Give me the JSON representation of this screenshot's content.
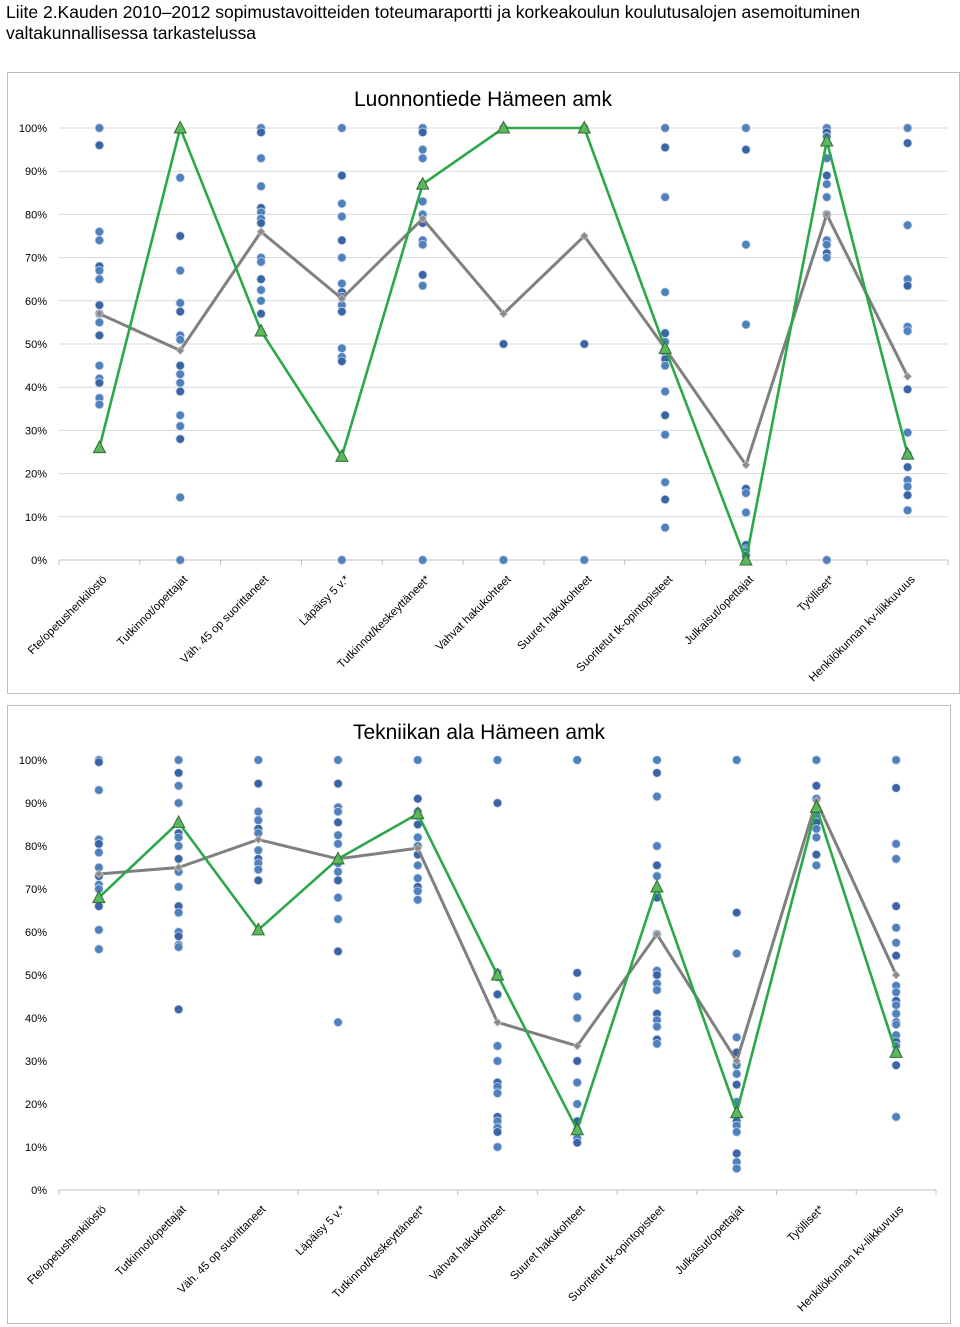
{
  "page": {
    "title_line1": "Liite 2.Kauden 2010–2012 sopimustavoitteiden toteumaraportti ja korkeakoulun koulutusalojen asemoituminen",
    "title_line2": "valtakunnallisessa tarkastelussa"
  },
  "chart_data": [
    {
      "type": "line",
      "title": "Luonnontiede Hämeen amk",
      "xlabel": "",
      "ylabel": "",
      "ylim": [
        0,
        100
      ],
      "yticks": [
        "0%",
        "10%",
        "20%",
        "30%",
        "40%",
        "50%",
        "60%",
        "70%",
        "80%",
        "90%",
        "100%"
      ],
      "categories": [
        "Fte/opetushenkilöstö",
        "Tutkinnot/opettajat",
        "Väh. 45 op suorittaneet",
        "Läpäisy 5 v.*",
        "Tutkinnot/keskeyttäneet*",
        "Vahvat hakukohteet",
        "Suuret hakukohteet",
        "Suoritetut tk-opintopisteet",
        "Julkaisut/opettajat",
        "Työlliset*",
        "Henkilökunnan kv-liikkuvuus"
      ],
      "grid": true,
      "colors": {
        "green": "#2ba84a",
        "gray": "#808080",
        "dot": "#4f81bd",
        "dot_dark": "#3b64a4",
        "grid": "#d9d9d9"
      },
      "series": [
        {
          "values": [
            26,
            100,
            53,
            24,
            87,
            100,
            100,
            49,
            0,
            97,
            24.5
          ]
        },
        {
          "values": [
            57,
            48.5,
            76,
            60.5,
            79,
            57,
            75,
            49,
            22,
            80,
            42.5
          ]
        }
      ],
      "scatter": [
        [
          100,
          96,
          76,
          74,
          68,
          67,
          65,
          59,
          57,
          55,
          52,
          45,
          42,
          41,
          37.5,
          36
        ],
        [
          88.5,
          75,
          67,
          59.5,
          57.5,
          52,
          51,
          45,
          43,
          41,
          39,
          33.5,
          31,
          28,
          14.5,
          0
        ],
        [
          100,
          99,
          93,
          86.5,
          81.5,
          80.5,
          79,
          78,
          70,
          69,
          65,
          62.5,
          60,
          57
        ],
        [
          100,
          89,
          82.5,
          79.5,
          74,
          70,
          64,
          62,
          61,
          59,
          57.5,
          49,
          47,
          46,
          0
        ],
        [
          100,
          99,
          95,
          93,
          87,
          83,
          80,
          78,
          74,
          73,
          66,
          63.5,
          0
        ],
        [
          100,
          50,
          0
        ],
        [
          100,
          50,
          0
        ],
        [
          100,
          95.5,
          84,
          62,
          52.5,
          50.5,
          48,
          46.5,
          45,
          39,
          33.5,
          29,
          18,
          14,
          7.5
        ],
        [
          100,
          95,
          73,
          54.5,
          16.5,
          15.5,
          11,
          3.5,
          2.5,
          2,
          1
        ],
        [
          100,
          99,
          98,
          93,
          89,
          87,
          84,
          80,
          74,
          73,
          71,
          70,
          0
        ],
        [
          100,
          96.5,
          77.5,
          65,
          63.5,
          54,
          53,
          39.5,
          29.5,
          24.5,
          21.5,
          18.5,
          17,
          15,
          11.5
        ]
      ]
    },
    {
      "type": "line",
      "title": "Tekniikan ala Hämeen amk",
      "xlabel": "",
      "ylabel": "",
      "ylim": [
        0,
        100
      ],
      "yticks": [
        "0%",
        "10%",
        "20%",
        "30%",
        "40%",
        "50%",
        "60%",
        "70%",
        "80%",
        "90%",
        "100%"
      ],
      "categories": [
        "Fte/opetushenkilöstö",
        "Tutkinnot/opettajat",
        "Väh. 45 op suorittaneet",
        "Läpäisy 5 v.*",
        "Tutkinnot/keskeyttäneet*",
        "Vahvat hakukohteet",
        "Suuret hakukohteet",
        "Suoritetut tk-opintopisteet",
        "Julkaisut/opettajat",
        "Työlliset*",
        "Henkilökunnan kv-liikkuvuus"
      ],
      "grid": false,
      "colors": {
        "green": "#2ba84a",
        "gray": "#808080",
        "dot": "#4f81bd",
        "dot_dark": "#3b64a4",
        "grid": "#d9d9d9"
      },
      "series": [
        {
          "values": [
            68,
            85.5,
            60.5,
            77,
            87.5,
            50,
            14,
            70.5,
            18,
            89,
            32
          ]
        },
        {
          "values": [
            73.5,
            75,
            81.5,
            77,
            79.5,
            39,
            33.5,
            59.5,
            30,
            90.5,
            50
          ]
        }
      ],
      "scatter": [
        [
          100,
          99.5,
          93,
          81.5,
          80.5,
          78.5,
          75,
          73,
          71,
          70,
          66,
          60.5,
          56
        ],
        [
          100,
          97,
          94,
          90,
          83,
          82,
          80,
          77,
          74,
          70.5,
          66,
          64.5,
          60,
          59,
          57,
          56.5,
          42
        ],
        [
          100,
          94.5,
          88,
          86,
          84,
          83,
          79,
          77,
          76,
          74.5,
          72
        ],
        [
          100,
          94.5,
          89,
          88,
          85.5,
          82.5,
          80.5,
          77,
          76,
          74,
          72,
          68,
          63,
          55.5,
          39
        ],
        [
          100,
          91,
          88,
          87,
          85,
          82,
          80,
          78,
          75.5,
          72.5,
          70.5,
          69.5,
          67.5
        ],
        [
          100,
          90,
          50.5,
          49.5,
          45.5,
          33.5,
          30,
          25,
          24,
          22.5,
          17,
          16,
          14.5,
          13.5,
          10
        ],
        [
          100,
          50.5,
          45,
          40,
          30,
          25,
          20,
          16,
          14,
          12,
          11
        ],
        [
          100,
          97,
          91.5,
          80,
          75.5,
          73,
          70,
          68,
          59.5,
          51,
          50,
          48,
          46.5,
          41,
          39.5,
          38,
          35,
          34
        ],
        [
          100,
          64.5,
          55,
          35.5,
          32,
          29,
          27,
          24.5,
          20.5,
          17,
          16,
          15,
          13.5,
          8.5,
          6.5,
          5
        ],
        [
          100,
          94,
          91,
          87,
          85.5,
          84,
          82,
          78,
          75.5
        ],
        [
          100,
          93.5,
          80.5,
          77,
          66,
          61,
          57.5,
          54.5,
          47.5,
          46,
          44,
          43,
          41,
          39,
          38.5,
          36,
          34.5,
          33.5,
          32,
          29,
          17
        ]
      ]
    }
  ]
}
